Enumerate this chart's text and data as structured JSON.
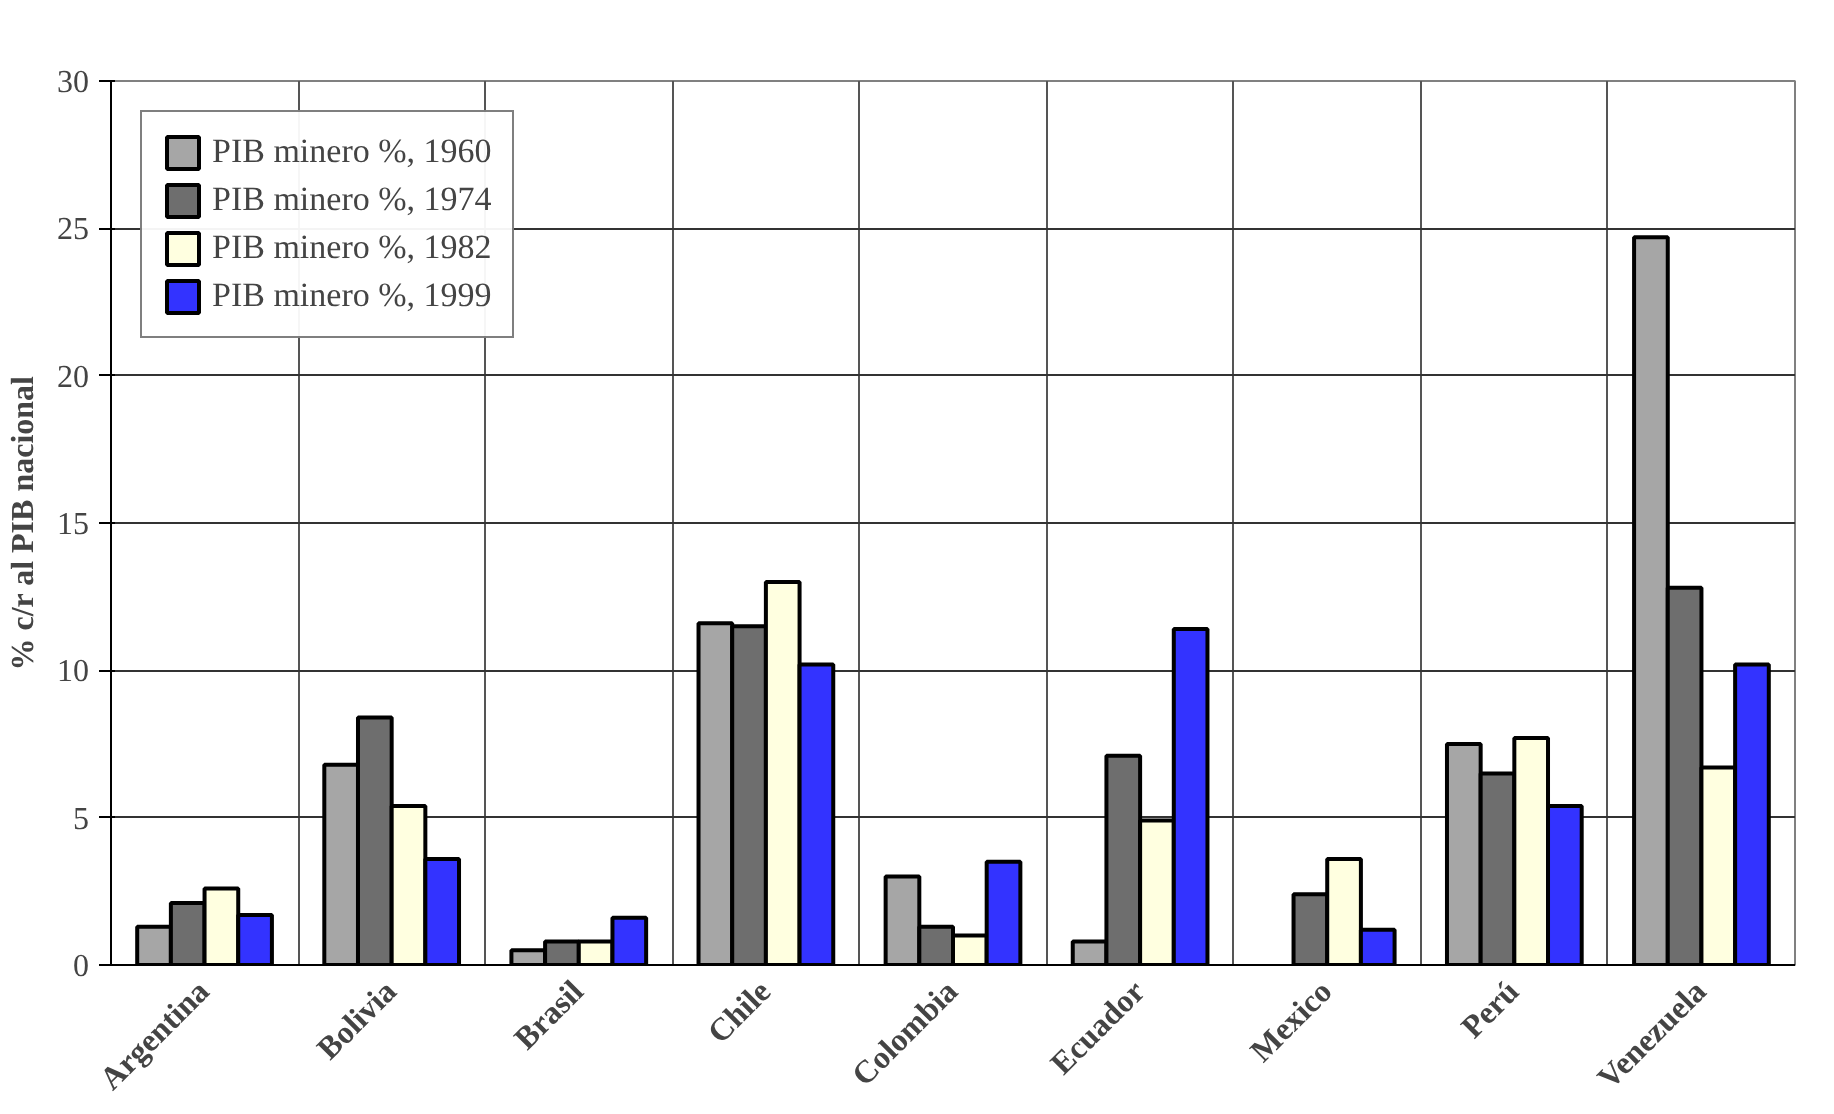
{
  "chart_data": {
    "type": "bar",
    "ylabel": "% c/r al PIB nacional",
    "categories": [
      "Argentina",
      "Bolivia",
      "Brasil",
      "Chile",
      "Colombia",
      "Ecuador",
      "Mexico",
      "Perú",
      "Venezuela"
    ],
    "series": [
      {
        "name": "PIB minero %, 1960",
        "color": "#a6a6a6",
        "values": [
          1.3,
          6.8,
          0.5,
          11.6,
          3.0,
          0.8,
          null,
          7.5,
          24.7
        ]
      },
      {
        "name": "PIB minero %, 1974",
        "color": "#6e6e6e",
        "values": [
          2.1,
          8.4,
          0.8,
          11.5,
          1.3,
          7.1,
          2.4,
          6.5,
          12.8
        ]
      },
      {
        "name": "PIB minero %, 1982",
        "color": "#ffffe0",
        "values": [
          2.6,
          5.4,
          0.8,
          13.0,
          1.0,
          4.9,
          3.6,
          7.7,
          6.7
        ]
      },
      {
        "name": "PIB minero %, 1999",
        "color": "#3333ff",
        "values": [
          1.7,
          3.6,
          1.6,
          10.2,
          3.5,
          11.4,
          1.2,
          5.4,
          10.2
        ]
      }
    ],
    "ylim": [
      0,
      30
    ],
    "yticks": [
      0,
      5,
      10,
      15,
      20,
      25,
      30
    ],
    "grid": true,
    "legend": "top left"
  }
}
